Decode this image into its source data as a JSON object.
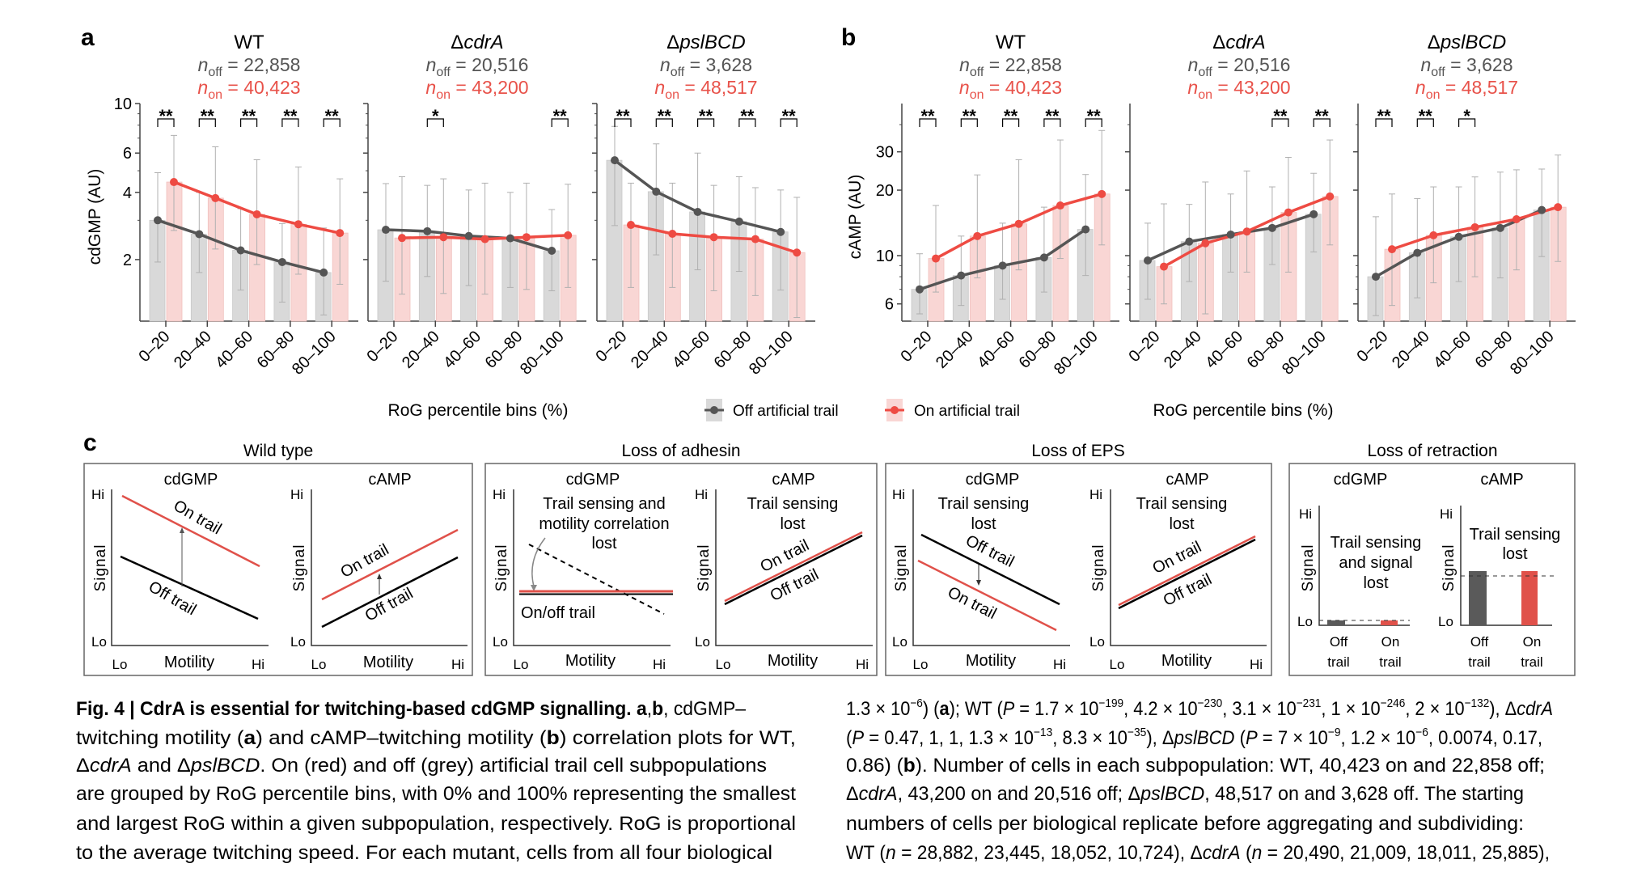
{
  "chart_data": [
    {
      "panel": "a",
      "type": "bar",
      "ylabel": "cdGMP (AU)",
      "xlabel": "RoG percentile bins (%)",
      "yscale": "log",
      "ylim": [
        1.06,
        10
      ],
      "yticks": [
        2,
        4,
        6,
        10
      ],
      "yminor": [
        3,
        5,
        7,
        8,
        9
      ],
      "categories": [
        "0–20",
        "20–40",
        "40–60",
        "60–80",
        "80–100"
      ],
      "subplots": [
        {
          "title_prefix": "",
          "title": "WT",
          "title_italic": false,
          "n_off": "22,858",
          "n_on": "40,423",
          "off": [
            3.0,
            2.6,
            2.2,
            1.95,
            1.75
          ],
          "on": [
            4.45,
            3.77,
            3.19,
            2.88,
            2.63
          ],
          "off_err": [
            [
              1.95,
              4.9
            ],
            [
              1.75,
              4.0
            ],
            [
              1.46,
              3.38
            ],
            [
              1.29,
              2.9
            ],
            [
              1.13,
              2.77
            ]
          ],
          "on_err": [
            [
              2.7,
              7.2
            ],
            [
              2.23,
              6.4
            ],
            [
              1.9,
              5.6
            ],
            [
              1.72,
              5.2
            ],
            [
              1.55,
              4.6
            ]
          ],
          "significance": [
            "**",
            "**",
            "**",
            "**",
            "**"
          ]
        },
        {
          "title_prefix": "Δ",
          "title": "cdrA",
          "title_italic": true,
          "n_off": "20,516",
          "n_on": "43,200",
          "off": [
            2.72,
            2.68,
            2.55,
            2.49,
            2.19
          ],
          "on": [
            2.5,
            2.52,
            2.47,
            2.52,
            2.57
          ],
          "off_err": [
            [
              1.6,
              4.38
            ],
            [
              1.68,
              4.3
            ],
            [
              1.53,
              4.1
            ],
            [
              1.5,
              4.0
            ],
            [
              1.45,
              3.35
            ]
          ],
          "on_err": [
            [
              1.4,
              4.7
            ],
            [
              1.41,
              4.6
            ],
            [
              1.4,
              4.4
            ],
            [
              1.47,
              4.4
            ],
            [
              1.5,
              4.35
            ]
          ],
          "significance": [
            "",
            "*",
            "",
            "",
            "**"
          ]
        },
        {
          "title_prefix": "Δ",
          "title": "pslBCD",
          "title_italic": true,
          "n_off": "3,628",
          "n_on": "48,517",
          "off": [
            5.57,
            4.03,
            3.27,
            2.96,
            2.66
          ],
          "on": [
            2.86,
            2.61,
            2.52,
            2.47,
            2.15
          ],
          "off_err": [
            [
              2.84,
              7.9
            ],
            [
              2.1,
              6.6
            ],
            [
              1.8,
              6.0
            ],
            [
              1.77,
              4.7
            ],
            [
              1.46,
              4.1
            ]
          ],
          "on_err": [
            [
              1.5,
              4.4
            ],
            [
              1.5,
              4.4
            ],
            [
              1.45,
              4.3
            ],
            [
              1.38,
              4.2
            ],
            [
              1.1,
              3.8
            ]
          ],
          "significance": [
            "**",
            "**",
            "**",
            "**",
            "**"
          ]
        }
      ]
    },
    {
      "panel": "b",
      "type": "bar",
      "ylabel": "cAMP (AU)",
      "xlabel": "RoG percentile bins (%)",
      "yscale": "log",
      "ylim": [
        5,
        50
      ],
      "yticks": [
        6,
        10,
        20,
        30
      ],
      "yminor": [
        7,
        8,
        9,
        40
      ],
      "categories": [
        "0–20",
        "20–40",
        "40–60",
        "60–80",
        "80–100"
      ],
      "subplots": [
        {
          "title_prefix": "",
          "title": "WT",
          "title_italic": false,
          "n_off": "22,858",
          "n_on": "40,423",
          "off": [
            7.0,
            8.1,
            9.0,
            9.8,
            13.2
          ],
          "on": [
            9.7,
            12.3,
            14.0,
            17.0,
            19.2
          ],
          "off_err": [
            [
              5.4,
              10.2
            ],
            [
              5.9,
              12.3
            ],
            [
              6.3,
              14.1
            ],
            [
              6.8,
              16.7
            ],
            [
              8.1,
              23.6
            ]
          ],
          "on_err": [
            [
              6.8,
              17.0
            ],
            [
              7.9,
              23.5
            ],
            [
              8.6,
              27.6
            ],
            [
              9.7,
              34.0
            ],
            [
              11.2,
              37.6
            ]
          ],
          "significance": [
            "**",
            "**",
            "**",
            "**",
            "**"
          ]
        },
        {
          "title_prefix": "Δ",
          "title": "cdrA",
          "title_italic": true,
          "n_off": "20,516",
          "n_on": "43,200",
          "off": [
            9.5,
            11.6,
            12.5,
            13.4,
            15.5
          ],
          "on": [
            8.9,
            11.4,
            12.9,
            15.8,
            18.7
          ],
          "off_err": [
            [
              6.3,
              14.1
            ],
            [
              7.6,
              17.2
            ],
            [
              8.4,
              19.2
            ],
            [
              9.1,
              20.7
            ],
            [
              10.4,
              23.9
            ]
          ],
          "on_err": [
            [
              6.0,
              17.3
            ],
            [
              5.4,
              21.8
            ],
            [
              8.4,
              24.5
            ],
            [
              8.4,
              28.3
            ],
            [
              11.2,
              34.0
            ]
          ],
          "significance": [
            "",
            "",
            "",
            "**",
            "**"
          ]
        },
        {
          "title_prefix": "Δ",
          "title": "pslBCD",
          "title_italic": true,
          "n_off": "3,628",
          "n_on": "48,517",
          "off": [
            8.0,
            10.3,
            12.2,
            13.4,
            16.2
          ],
          "on": [
            10.7,
            12.4,
            13.5,
            14.7,
            16.7
          ],
          "off_err": [
            [
              5.3,
              15.1
            ],
            [
              6.4,
              18.3
            ],
            [
              7.6,
              20.7
            ],
            [
              7.9,
              24.2
            ],
            [
              9.9,
              25.0
            ]
          ],
          "on_err": [
            [
              5.9,
              19.2
            ],
            [
              7.5,
              20.7
            ],
            [
              8.0,
              23.0
            ],
            [
              8.6,
              24.8
            ],
            [
              9.4,
              29.0
            ]
          ],
          "significance": [
            "**",
            "**",
            "*",
            "",
            ""
          ]
        }
      ]
    }
  ],
  "n_symbol": "n",
  "n_off_sub": "off",
  "n_on_sub": "on",
  "legend": {
    "off_label": "Off artificial trail",
    "on_label": "On artificial trail",
    "position": "bottom-center"
  },
  "colors": {
    "off_line": "#555555",
    "on_line": "#ee4b43",
    "off_bar": "#d9d9d9",
    "on_bar": "#f9d6d4",
    "error": "#b0b0b0",
    "n_off": "#555555",
    "n_on": "#e8524a"
  },
  "panel_c": {
    "label": "c",
    "hi": "Hi",
    "lo": "Lo",
    "signal": "Signal",
    "motility": "Motility",
    "cdgmp": "cdGMP",
    "camp": "cAMP",
    "on_trail": "On trail",
    "off_trail": "Off trail",
    "on": "On",
    "off": "Off",
    "trail": "trail",
    "wild_type": {
      "title": "Wild type"
    },
    "adhesin": {
      "title": "Loss of adhesin",
      "note": [
        "Trail sensing and",
        "motility correlation",
        "lost"
      ],
      "onoff": "On/off trail",
      "camp_note": [
        "Trail sensing",
        "lost"
      ]
    },
    "eps": {
      "title": "Loss of EPS",
      "note": [
        "Trail sensing",
        "lost"
      ],
      "camp_note": [
        "Trail sensing",
        "lost"
      ]
    },
    "retraction": {
      "title": "Loss of retraction",
      "note": [
        "Trail sensing",
        "and signal",
        "lost"
      ],
      "camp_note": [
        "Trail sensing",
        "lost"
      ]
    }
  },
  "caption": {
    "left": [
      [
        {
          "b": "Fig. 4 | CdrA is essential for twitching-based cdGMP signalling. a"
        },
        {
          "t": ","
        },
        {
          "b": "b"
        },
        {
          "t": ", cdGMP–"
        }
      ],
      [
        {
          "t": "twitching motility ("
        },
        {
          "b": "a"
        },
        {
          "t": ") and cAMP–twitching motility ("
        },
        {
          "b": "b"
        },
        {
          "t": ") correlation plots for WT,"
        }
      ],
      [
        {
          "t": "Δ"
        },
        {
          "i": "cdrA"
        },
        {
          "t": " and Δ"
        },
        {
          "i": "pslBCD"
        },
        {
          "t": ". On (red) and off (grey) artificial trail cell subpopulations"
        }
      ],
      [
        {
          "t": "are grouped by RoG percentile bins, with 0% and 100% representing the smallest"
        }
      ],
      [
        {
          "t": "and largest RoG within a given subpopulation, respectively. RoG is proportional"
        }
      ],
      [
        {
          "t": "to the average twitching speed. For each mutant, cells from all four biological"
        }
      ]
    ],
    "right": [
      [
        {
          "t": "1.3 × 10"
        },
        {
          "sup": "−6"
        },
        {
          "t": ") ("
        },
        {
          "b": "a"
        },
        {
          "t": "); WT ("
        },
        {
          "i": "P"
        },
        {
          "t": " = 1.7 × 10"
        },
        {
          "sup": "−199"
        },
        {
          "t": ", 4.2 × 10"
        },
        {
          "sup": "−230"
        },
        {
          "t": ", 3.1 × 10"
        },
        {
          "sup": "−231"
        },
        {
          "t": ", 1 × 10"
        },
        {
          "sup": "−246"
        },
        {
          "t": ", 2 × 10"
        },
        {
          "sup": "−132"
        },
        {
          "t": "), Δ"
        },
        {
          "i": "cdrA"
        }
      ],
      [
        {
          "t": "("
        },
        {
          "i": "P"
        },
        {
          "t": " = 0.47, 1, 1, 1.3 × 10"
        },
        {
          "sup": "−13"
        },
        {
          "t": ", 8.3 × 10"
        },
        {
          "sup": "−35"
        },
        {
          "t": "), Δ"
        },
        {
          "i": "pslBCD"
        },
        {
          "t": " ("
        },
        {
          "i": "P"
        },
        {
          "t": " = 7 × 10"
        },
        {
          "sup": "−9"
        },
        {
          "t": ", 1.2 × 10"
        },
        {
          "sup": "−6"
        },
        {
          "t": ", 0.0074, 0.17,"
        }
      ],
      [
        {
          "t": "0.86) ("
        },
        {
          "b": "b"
        },
        {
          "t": "). Number of cells in each subpopulation: WT, 40,423 on and 22,858 off;"
        }
      ],
      [
        {
          "t": "Δ"
        },
        {
          "i": "cdrA"
        },
        {
          "t": ", 43,200 on and 20,516 off; Δ"
        },
        {
          "i": "pslBCD"
        },
        {
          "t": ", 48,517 on and 3,628 off. The starting"
        }
      ],
      [
        {
          "t": "numbers of cells per biological replicate before aggregating and subdividing:"
        }
      ],
      [
        {
          "t": "WT ("
        },
        {
          "i": "n"
        },
        {
          "t": " = 28,882, 23,445, 18,052, 10,724), Δ"
        },
        {
          "i": "cdrA"
        },
        {
          "t": " ("
        },
        {
          "i": "n"
        },
        {
          "t": " = 20,490, 21,009, 18,011, 25,885),"
        }
      ]
    ]
  }
}
